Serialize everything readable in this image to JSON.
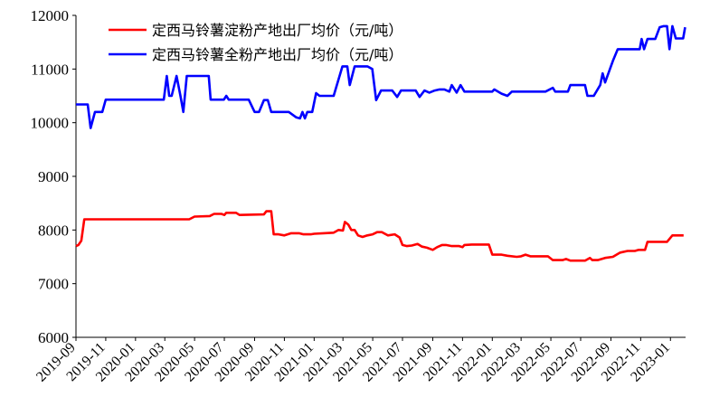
{
  "chart_data": {
    "type": "line",
    "title": "",
    "xlabel": "",
    "ylabel": "",
    "ylim": [
      6000,
      12000
    ],
    "yticks": [
      6000,
      7000,
      8000,
      9000,
      10000,
      11000,
      12000
    ],
    "x_start": "2019-09",
    "x_end": "2023-02",
    "xticks": [
      "2019-09",
      "2019-11",
      "2020-01",
      "2020-03",
      "2020-05",
      "2020-07",
      "2020-09",
      "2020-11",
      "2021-01",
      "2021-03",
      "2021-05",
      "2021-07",
      "2021-09",
      "2021-11",
      "2022-01",
      "2022-03",
      "2022-05",
      "2022-07",
      "2022-09",
      "2022-11",
      "2023-01"
    ],
    "grid": false,
    "legend_position": "top-left",
    "series": [
      {
        "name": "定西马铃薯淀粉产地出厂均价（元/吨）",
        "color": "#ff0000",
        "points": [
          [
            "2019-09-01",
            7700
          ],
          [
            "2019-09-06",
            7720
          ],
          [
            "2019-09-12",
            7800
          ],
          [
            "2019-09-18",
            8200
          ],
          [
            "2019-10-15",
            8200
          ],
          [
            "2020-01-15",
            8200
          ],
          [
            "2020-04-20",
            8200
          ],
          [
            "2020-05-01",
            8250
          ],
          [
            "2020-06-01",
            8260
          ],
          [
            "2020-06-10",
            8300
          ],
          [
            "2020-06-25",
            8300
          ],
          [
            "2020-07-01",
            8280
          ],
          [
            "2020-07-05",
            8320
          ],
          [
            "2020-07-25",
            8320
          ],
          [
            "2020-08-01",
            8280
          ],
          [
            "2020-09-20",
            8290
          ],
          [
            "2020-09-25",
            8350
          ],
          [
            "2020-10-05",
            8350
          ],
          [
            "2020-10-10",
            7920
          ],
          [
            "2020-10-20",
            7920
          ],
          [
            "2020-11-01",
            7900
          ],
          [
            "2020-11-15",
            7940
          ],
          [
            "2020-12-01",
            7940
          ],
          [
            "2020-12-10",
            7920
          ],
          [
            "2020-12-25",
            7920
          ],
          [
            "2021-01-01",
            7930
          ],
          [
            "2021-01-20",
            7940
          ],
          [
            "2021-02-10",
            7950
          ],
          [
            "2021-02-20",
            8000
          ],
          [
            "2021-03-01",
            7990
          ],
          [
            "2021-03-05",
            8150
          ],
          [
            "2021-03-12",
            8100
          ],
          [
            "2021-03-18",
            8000
          ],
          [
            "2021-03-25",
            8000
          ],
          [
            "2021-04-01",
            7900
          ],
          [
            "2021-04-10",
            7870
          ],
          [
            "2021-04-20",
            7900
          ],
          [
            "2021-05-01",
            7920
          ],
          [
            "2021-05-10",
            7960
          ],
          [
            "2021-05-20",
            7960
          ],
          [
            "2021-06-01",
            7900
          ],
          [
            "2021-06-15",
            7920
          ],
          [
            "2021-06-25",
            7860
          ],
          [
            "2021-07-01",
            7720
          ],
          [
            "2021-07-10",
            7700
          ],
          [
            "2021-07-20",
            7710
          ],
          [
            "2021-08-01",
            7740
          ],
          [
            "2021-08-10",
            7690
          ],
          [
            "2021-08-20",
            7670
          ],
          [
            "2021-09-01",
            7630
          ],
          [
            "2021-09-10",
            7680
          ],
          [
            "2021-09-20",
            7720
          ],
          [
            "2021-09-28",
            7720
          ],
          [
            "2021-10-10",
            7700
          ],
          [
            "2021-10-25",
            7700
          ],
          [
            "2021-11-01",
            7680
          ],
          [
            "2021-11-05",
            7720
          ],
          [
            "2021-11-20",
            7730
          ],
          [
            "2021-12-25",
            7730
          ],
          [
            "2022-01-01",
            7540
          ],
          [
            "2022-01-20",
            7540
          ],
          [
            "2022-02-01",
            7520
          ],
          [
            "2022-02-20",
            7500
          ],
          [
            "2022-03-01",
            7510
          ],
          [
            "2022-03-10",
            7540
          ],
          [
            "2022-03-20",
            7510
          ],
          [
            "2022-04-25",
            7510
          ],
          [
            "2022-05-05",
            7440
          ],
          [
            "2022-05-25",
            7440
          ],
          [
            "2022-06-01",
            7460
          ],
          [
            "2022-06-10",
            7430
          ],
          [
            "2022-07-10",
            7430
          ],
          [
            "2022-07-20",
            7480
          ],
          [
            "2022-07-25",
            7440
          ],
          [
            "2022-08-05",
            7440
          ],
          [
            "2022-08-20",
            7480
          ],
          [
            "2022-09-05",
            7500
          ],
          [
            "2022-09-20",
            7580
          ],
          [
            "2022-10-05",
            7610
          ],
          [
            "2022-10-20",
            7610
          ],
          [
            "2022-10-28",
            7630
          ],
          [
            "2022-11-10",
            7630
          ],
          [
            "2022-11-15",
            7780
          ],
          [
            "2022-12-25",
            7780
          ],
          [
            "2023-01-05",
            7900
          ],
          [
            "2023-01-28",
            7900
          ]
        ]
      },
      {
        "name": "定西马铃薯全粉产地出厂均价（元/吨）",
        "color": "#0000ff",
        "points": [
          [
            "2019-09-01",
            10340
          ],
          [
            "2019-09-25",
            10340
          ],
          [
            "2019-10-01",
            9900
          ],
          [
            "2019-10-10",
            10200
          ],
          [
            "2019-10-25",
            10200
          ],
          [
            "2019-11-01",
            10430
          ],
          [
            "2020-02-28",
            10430
          ],
          [
            "2020-03-05",
            10870
          ],
          [
            "2020-03-10",
            10500
          ],
          [
            "2020-03-15",
            10500
          ],
          [
            "2020-03-25",
            10870
          ],
          [
            "2020-04-02",
            10500
          ],
          [
            "2020-04-08",
            10200
          ],
          [
            "2020-04-15",
            10870
          ],
          [
            "2020-05-30",
            10870
          ],
          [
            "2020-06-03",
            10430
          ],
          [
            "2020-06-30",
            10430
          ],
          [
            "2020-07-05",
            10500
          ],
          [
            "2020-07-10",
            10430
          ],
          [
            "2020-08-20",
            10430
          ],
          [
            "2020-09-01",
            10200
          ],
          [
            "2020-09-10",
            10200
          ],
          [
            "2020-09-20",
            10420
          ],
          [
            "2020-09-28",
            10420
          ],
          [
            "2020-10-05",
            10200
          ],
          [
            "2020-11-10",
            10200
          ],
          [
            "2020-11-25",
            10100
          ],
          [
            "2020-12-03",
            10080
          ],
          [
            "2020-12-08",
            10200
          ],
          [
            "2020-12-13",
            10080
          ],
          [
            "2020-12-18",
            10200
          ],
          [
            "2020-12-28",
            10200
          ],
          [
            "2021-01-05",
            10550
          ],
          [
            "2021-01-12",
            10500
          ],
          [
            "2021-02-10",
            10500
          ],
          [
            "2021-02-28",
            11050
          ],
          [
            "2021-03-10",
            11050
          ],
          [
            "2021-03-15",
            10700
          ],
          [
            "2021-03-25",
            11050
          ],
          [
            "2021-04-20",
            11050
          ],
          [
            "2021-04-30",
            11000
          ],
          [
            "2021-05-08",
            10420
          ],
          [
            "2021-05-18",
            10600
          ],
          [
            "2021-06-10",
            10600
          ],
          [
            "2021-06-20",
            10480
          ],
          [
            "2021-06-28",
            10600
          ],
          [
            "2021-07-20",
            10600
          ],
          [
            "2021-07-28",
            10600
          ],
          [
            "2021-08-05",
            10480
          ],
          [
            "2021-08-15",
            10600
          ],
          [
            "2021-08-25",
            10560
          ],
          [
            "2021-09-05",
            10600
          ],
          [
            "2021-09-15",
            10620
          ],
          [
            "2021-09-25",
            10620
          ],
          [
            "2021-10-05",
            10580
          ],
          [
            "2021-10-10",
            10700
          ],
          [
            "2021-10-20",
            10560
          ],
          [
            "2021-10-28",
            10700
          ],
          [
            "2021-11-05",
            10580
          ],
          [
            "2021-12-20",
            10580
          ],
          [
            "2022-01-01",
            10580
          ],
          [
            "2022-01-05",
            10620
          ],
          [
            "2022-01-20",
            10540
          ],
          [
            "2022-02-01",
            10500
          ],
          [
            "2022-02-10",
            10580
          ],
          [
            "2022-04-20",
            10580
          ],
          [
            "2022-05-05",
            10650
          ],
          [
            "2022-05-10",
            10580
          ],
          [
            "2022-06-05",
            10580
          ],
          [
            "2022-06-10",
            10700
          ],
          [
            "2022-07-10",
            10700
          ],
          [
            "2022-07-15",
            10500
          ],
          [
            "2022-07-28",
            10500
          ],
          [
            "2022-08-10",
            10700
          ],
          [
            "2022-08-15",
            10920
          ],
          [
            "2022-08-20",
            10750
          ],
          [
            "2022-09-05",
            11150
          ],
          [
            "2022-09-15",
            11370
          ],
          [
            "2022-10-30",
            11370
          ],
          [
            "2022-11-03",
            11560
          ],
          [
            "2022-11-08",
            11370
          ],
          [
            "2022-11-15",
            11560
          ],
          [
            "2022-12-01",
            11560
          ],
          [
            "2022-12-10",
            11780
          ],
          [
            "2022-12-18",
            11800
          ],
          [
            "2022-12-25",
            11800
          ],
          [
            "2022-12-30",
            11370
          ],
          [
            "2023-01-05",
            11800
          ],
          [
            "2023-01-12",
            11570
          ],
          [
            "2023-01-27",
            11570
          ],
          [
            "2023-01-31",
            11780
          ]
        ]
      }
    ]
  }
}
